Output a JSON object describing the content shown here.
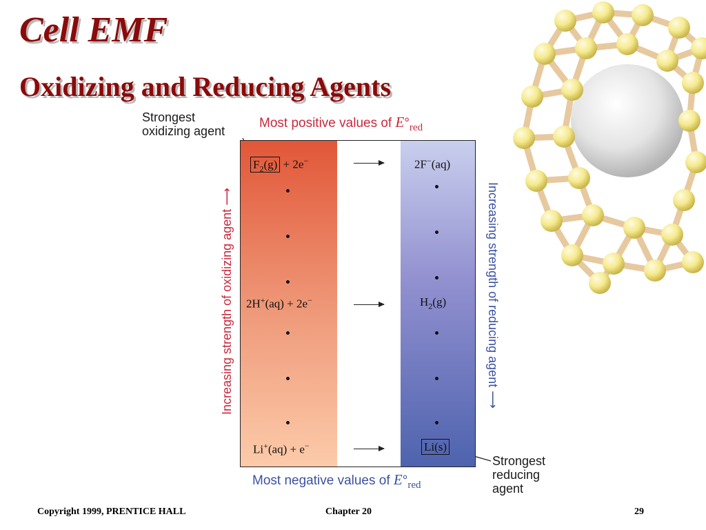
{
  "title": "Cell EMF",
  "subtitle": "Oxidizing and Reducing Agents",
  "diagram": {
    "top_left_annotation": [
      "Strongest",
      "oxidizing agent"
    ],
    "bottom_right_annotation": [
      "Strongest",
      "reducing",
      "agent"
    ],
    "top_label": {
      "text": "Most positive values of ",
      "E": "E",
      "deg": "°",
      "sub": "red"
    },
    "bottom_label": {
      "text": "Most negative values of ",
      "E": "E",
      "deg": "°",
      "sub": "red"
    },
    "left_axis": "Increasing strength of oxidizing agent",
    "right_axis": "Increasing strength of reducing agent",
    "rows": [
      {
        "left": "F₂(g) + 2e⁻",
        "right": "2F⁻(aq)"
      },
      {
        "left": "2H⁺(aq) + 2e⁻",
        "right": "H₂(g)"
      },
      {
        "left": "Li⁺(aq) + e⁻",
        "right": "Li(s)"
      }
    ],
    "colors": {
      "oxidizing": "#c8283c",
      "reducing": "#3a52a0"
    }
  },
  "footer": {
    "copyright": "Copyright 1999, PRENTICE HALL",
    "chapter": "Chapter 20",
    "page": "29"
  }
}
